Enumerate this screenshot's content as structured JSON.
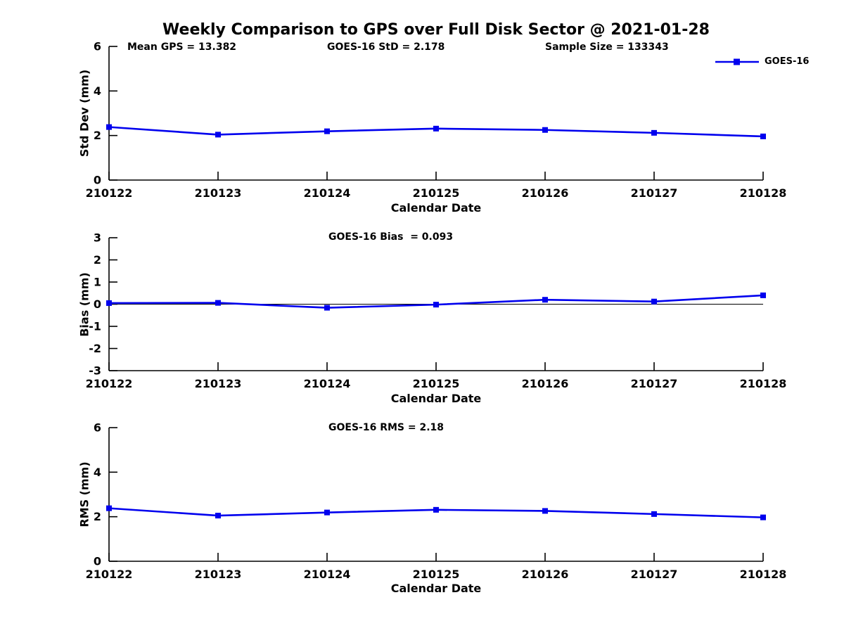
{
  "title": "Weekly Comparison to GPS over Full Disk Sector @ 2021-01-28",
  "legend": {
    "label": "GOES-16",
    "color": "#0000EE",
    "marker": "square"
  },
  "colors": {
    "line": "#0000EE",
    "axis": "#000000",
    "background": "#FFFFFF"
  },
  "chart_data": [
    {
      "type": "line",
      "name": "std-dev",
      "title": "",
      "xlabel": "Calendar Date",
      "ylabel": "Std Dev (mm)",
      "categories": [
        "210122",
        "210123",
        "210124",
        "210125",
        "210126",
        "210127",
        "210128"
      ],
      "series": [
        {
          "name": "GOES-16",
          "values": [
            2.38,
            2.04,
            2.19,
            2.31,
            2.25,
            2.12,
            1.96
          ]
        }
      ],
      "ylim": [
        0,
        6
      ],
      "yticks": [
        0,
        2,
        4,
        6
      ],
      "grid": false,
      "zero_line": false,
      "legend_position": "top-right-outside",
      "annotations": [
        "Mean GPS = 13.382",
        "GOES-16 StD = 2.178",
        "Sample Size = 133343"
      ]
    },
    {
      "type": "line",
      "name": "bias",
      "title": "",
      "xlabel": "Calendar Date",
      "ylabel": "Bias (mm)",
      "categories": [
        "210122",
        "210123",
        "210124",
        "210125",
        "210126",
        "210127",
        "210128"
      ],
      "series": [
        {
          "name": "GOES-16",
          "values": [
            0.05,
            0.06,
            -0.16,
            -0.02,
            0.2,
            0.12,
            0.4
          ]
        }
      ],
      "ylim": [
        -3,
        3
      ],
      "yticks": [
        -3,
        -2,
        -1,
        0,
        1,
        2,
        3
      ],
      "grid": false,
      "zero_line": true,
      "annotations": [
        "GOES-16 Bias  = 0.093"
      ]
    },
    {
      "type": "line",
      "name": "rms",
      "title": "",
      "xlabel": "Calendar Date",
      "ylabel": "RMS (mm)",
      "categories": [
        "210122",
        "210123",
        "210124",
        "210125",
        "210126",
        "210127",
        "210128"
      ],
      "series": [
        {
          "name": "GOES-16",
          "values": [
            2.38,
            2.05,
            2.19,
            2.31,
            2.26,
            2.12,
            1.97
          ]
        }
      ],
      "ylim": [
        0,
        6
      ],
      "yticks": [
        0,
        2,
        4,
        6
      ],
      "grid": false,
      "zero_line": false,
      "annotations": [
        "GOES-16 RMS = 2.18"
      ]
    }
  ]
}
